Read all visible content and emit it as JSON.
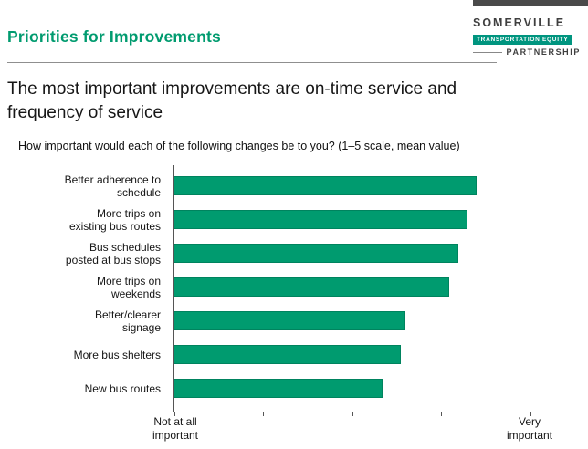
{
  "header": {
    "title": "Priorities for Improvements",
    "logo": {
      "line1": "SOMERVILLE",
      "line2": "TRANSPORTATION EQUITY",
      "line3": "PARTNERSHIP"
    }
  },
  "headline": "The most important improvements are on-time service and frequency of service",
  "chart_data": {
    "type": "bar",
    "orientation": "horizontal",
    "title": "How important would each of the following changes be to you? (1–5 scale, mean value)",
    "categories": [
      "Better adherence to schedule",
      "More trips on existing bus routes",
      "Bus schedules posted at bus stops",
      "More trips on weekends",
      "Better/clearer signage",
      "More bus shelters",
      "New bus routes"
    ],
    "values": [
      4.4,
      4.3,
      4.2,
      4.1,
      3.6,
      3.55,
      3.35
    ],
    "xlim": [
      1,
      5
    ],
    "axis_labels": {
      "left": "Not at all important",
      "right": "Very important"
    },
    "bar_color": "#009B6F",
    "grid": false,
    "legend": false
  },
  "colors": {
    "accent": "#009B6F",
    "logo_bar": "#4a4a4a",
    "logo_box": "#00957F",
    "rule": "#8f8f8f",
    "axis": "#555555"
  }
}
